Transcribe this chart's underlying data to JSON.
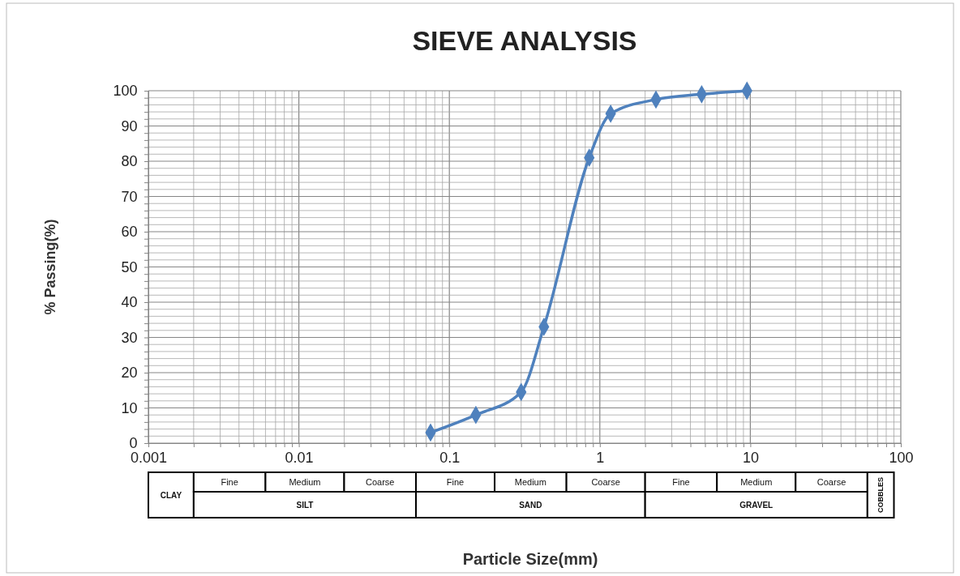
{
  "chart_data": {
    "type": "line",
    "title": "SIEVE ANALYSIS",
    "ylabel": "% Passing(%)",
    "x": [
      0.075,
      0.15,
      0.3,
      0.425,
      0.85,
      1.18,
      2.36,
      4.75,
      9.5
    ],
    "series": [
      {
        "color": "#4f81bd",
        "values": [
          3,
          8,
          14.5,
          33,
          81,
          93.5,
          97.5,
          99,
          100
        ]
      }
    ],
    "log": "x",
    "grid": true,
    "marker": "diamond",
    "line_style": "solid",
    "xlim": [
      0.001,
      100
    ],
    "ylim": [
      0,
      100
    ],
    "xticks": [
      0.001,
      {
        "value": 0.002,
        "label": null
      },
      {
        "value": 0.003,
        "label": null
      },
      {
        "value": 0.004,
        "label": null
      },
      {
        "value": 0.005,
        "label": null
      },
      {
        "value": 0.006,
        "label": null
      },
      {
        "value": 0.007,
        "label": null
      },
      {
        "value": 0.008,
        "label": null
      },
      {
        "value": 0.009,
        "label": null
      },
      0.01,
      {
        "value": 0.02,
        "label": null
      },
      {
        "value": 0.03,
        "label": null
      },
      {
        "value": 0.04,
        "label": null
      },
      {
        "value": 0.05,
        "label": null
      },
      {
        "value": 0.06,
        "label": null
      },
      {
        "value": 0.07,
        "label": null
      },
      {
        "value": 0.08,
        "label": null
      },
      {
        "value": 0.09,
        "label": null
      },
      0.1,
      {
        "value": 0.2,
        "label": null
      },
      {
        "value": 0.3,
        "label": null
      },
      {
        "value": 0.4,
        "label": null
      },
      {
        "value": 0.5,
        "label": null
      },
      {
        "value": 0.6,
        "label": null
      },
      {
        "value": 0.7,
        "label": null
      },
      {
        "value": 0.8,
        "label": null
      },
      {
        "value": 0.9,
        "label": null
      },
      1,
      {
        "value": 2,
        "label": null
      },
      {
        "value": 3,
        "label": null
      },
      {
        "value": 4,
        "label": null
      },
      {
        "value": 5,
        "label": null
      },
      {
        "value": 6,
        "label": null
      },
      {
        "value": 7,
        "label": null
      },
      {
        "value": 8,
        "label": null
      },
      {
        "value": 9,
        "label": null
      },
      10,
      {
        "value": 20,
        "label": null
      },
      {
        "value": 30,
        "label": null
      },
      {
        "value": 40,
        "label": null
      },
      {
        "value": 50,
        "label": null
      },
      {
        "value": 60,
        "label": null
      },
      {
        "value": 70,
        "label": null
      },
      {
        "value": 80,
        "label": null
      },
      {
        "value": 90,
        "label": null
      },
      100
    ],
    "yticks": [
      0,
      {
        "value": 2,
        "label": null
      },
      {
        "value": 4,
        "label": null
      },
      {
        "value": 6,
        "label": null
      },
      {
        "value": 8,
        "label": null
      },
      10,
      {
        "value": 12,
        "label": null
      },
      {
        "value": 14,
        "label": null
      },
      {
        "value": 16,
        "label": null
      },
      {
        "value": 18,
        "label": null
      },
      20,
      {
        "value": 22,
        "label": null
      },
      {
        "value": 24,
        "label": null
      },
      {
        "value": 26,
        "label": null
      },
      {
        "value": 28,
        "label": null
      },
      30,
      {
        "value": 32,
        "label": null
      },
      {
        "value": 34,
        "label": null
      },
      {
        "value": 36,
        "label": null
      },
      {
        "value": 38,
        "label": null
      },
      40,
      {
        "value": 42,
        "label": null
      },
      {
        "value": 44,
        "label": null
      },
      {
        "value": 46,
        "label": null
      },
      {
        "value": 48,
        "label": null
      },
      50,
      {
        "value": 52,
        "label": null
      },
      {
        "value": 54,
        "label": null
      },
      {
        "value": 56,
        "label": null
      },
      {
        "value": 58,
        "label": null
      },
      60,
      {
        "value": 62,
        "label": null
      },
      {
        "value": 64,
        "label": null
      },
      {
        "value": 66,
        "label": null
      },
      {
        "value": 68,
        "label": null
      },
      70,
      {
        "value": 72,
        "label": null
      },
      {
        "value": 74,
        "label": null
      },
      {
        "value": 76,
        "label": null
      },
      {
        "value": 78,
        "label": null
      },
      80,
      {
        "value": 82,
        "label": null
      },
      {
        "value": 84,
        "label": null
      },
      {
        "value": 86,
        "label": null
      },
      {
        "value": 88,
        "label": null
      },
      90,
      {
        "value": 92,
        "label": null
      },
      {
        "value": 94,
        "label": null
      },
      {
        "value": 96,
        "label": null
      },
      {
        "value": 98,
        "label": null
      },
      100
    ],
    "annotations": [
      "CLAY",
      "Fine",
      "Medium",
      "Coarse",
      "Fine",
      "Medium",
      "Coarse",
      "Fine",
      "Medium",
      "Coarse",
      "SILT",
      "SAND",
      "GRAVEL",
      "COBBLES",
      "Particle Size(mm)"
    ]
  }
}
